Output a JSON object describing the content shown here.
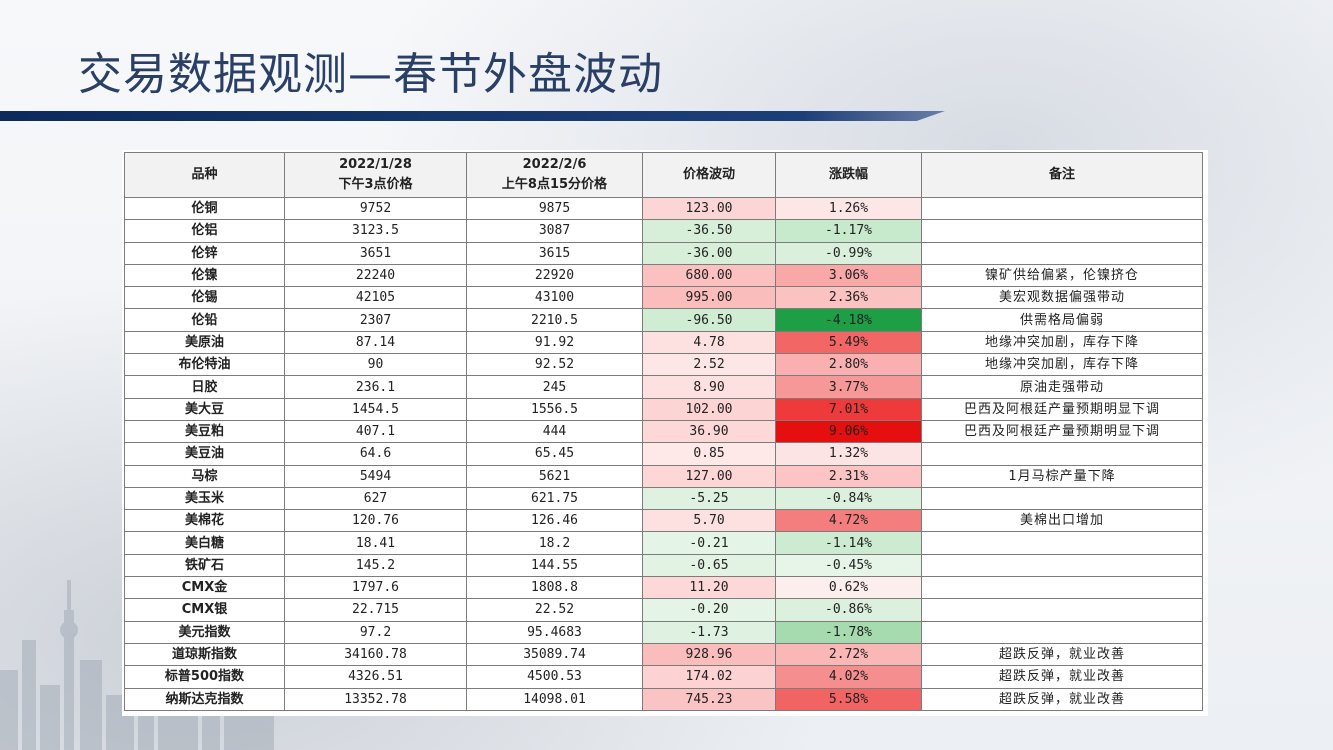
{
  "slide": {
    "title": "交易数据观测—春节外盘波动"
  },
  "table": {
    "headers": {
      "variety": "品种",
      "date1": "2022/1/28",
      "date1_sub": "下午3点价格",
      "date2": "2022/2/6",
      "date2_sub": "上午8点15分价格",
      "change": "价格波动",
      "pct": "涨跌幅",
      "note": "备注"
    },
    "rows": [
      {
        "name": "伦铜",
        "p1": "9752",
        "p2": "9875",
        "chg": "123.00",
        "pct": "1.26%",
        "note": "",
        "chg_color": "#fcd6d6",
        "pct_color": "#fde6e6"
      },
      {
        "name": "伦铝",
        "p1": "3123.5",
        "p2": "3087",
        "chg": "-36.50",
        "pct": "-1.17%",
        "note": "",
        "chg_color": "#d7efd9",
        "pct_color": "#c8eacc"
      },
      {
        "name": "伦锌",
        "p1": "3651",
        "p2": "3615",
        "chg": "-36.00",
        "pct": "-0.99%",
        "note": "",
        "chg_color": "#d7efd9",
        "pct_color": "#daf0dc"
      },
      {
        "name": "伦镍",
        "p1": "22240",
        "p2": "22920",
        "chg": "680.00",
        "pct": "3.06%",
        "note": "镍矿供给偏紧，伦镍挤仓",
        "chg_color": "#fbc0c0",
        "pct_color": "#f9a8a8"
      },
      {
        "name": "伦锡",
        "p1": "42105",
        "p2": "43100",
        "chg": "995.00",
        "pct": "2.36%",
        "note": "美宏观数据偏强带动",
        "chg_color": "#fbbcbc",
        "pct_color": "#fbc2c2"
      },
      {
        "name": "伦铅",
        "p1": "2307",
        "p2": "2210.5",
        "chg": "-96.50",
        "pct": "-4.18%",
        "note": "供需格局偏弱",
        "chg_color": "#d0ecd3",
        "pct_color": "#1e9e45"
      },
      {
        "name": "美原油",
        "p1": "87.14",
        "p2": "91.92",
        "chg": "4.78",
        "pct": "5.49%",
        "note": "地缘冲突加剧，库存下降",
        "chg_color": "#fde0e0",
        "pct_color": "#f26666"
      },
      {
        "name": "布伦特油",
        "p1": "90",
        "p2": "92.52",
        "chg": "2.52",
        "pct": "2.80%",
        "note": "地缘冲突加剧，库存下降",
        "chg_color": "#fde6e6",
        "pct_color": "#fab0b0"
      },
      {
        "name": "日胶",
        "p1": "236.1",
        "p2": "245",
        "chg": "8.90",
        "pct": "3.77%",
        "note": "原油走强带动",
        "chg_color": "#fde0e0",
        "pct_color": "#f79898"
      },
      {
        "name": "美大豆",
        "p1": "1454.5",
        "p2": "1556.5",
        "chg": "102.00",
        "pct": "7.01%",
        "note": "巴西及阿根廷产量预期明显下调",
        "chg_color": "#fdd4d4",
        "pct_color": "#ee3a3a"
      },
      {
        "name": "美豆粕",
        "p1": "407.1",
        "p2": "444",
        "chg": "36.90",
        "pct": "9.06%",
        "note": "巴西及阿根廷产量预期明显下调",
        "chg_color": "#fdd8d8",
        "pct_color": "#e60f0f"
      },
      {
        "name": "美豆油",
        "p1": "64.6",
        "p2": "65.45",
        "chg": "0.85",
        "pct": "1.32%",
        "note": "",
        "chg_color": "#fee8e8",
        "pct_color": "#fde4e4"
      },
      {
        "name": "马棕",
        "p1": "5494",
        "p2": "5621",
        "chg": "127.00",
        "pct": "2.31%",
        "note": "1月马棕产量下降",
        "chg_color": "#fdd6d6",
        "pct_color": "#fcc4c4"
      },
      {
        "name": "美玉米",
        "p1": "627",
        "p2": "621.75",
        "chg": "-5.25",
        "pct": "-0.84%",
        "note": "",
        "chg_color": "#dff2e1",
        "pct_color": "#dcf0de"
      },
      {
        "name": "美棉花",
        "p1": "120.76",
        "p2": "126.46",
        "chg": "5.70",
        "pct": "4.72%",
        "note": "美棉出口增加",
        "chg_color": "#fde0e0",
        "pct_color": "#f47e7e"
      },
      {
        "name": "美白糖",
        "p1": "18.41",
        "p2": "18.2",
        "chg": "-0.21",
        "pct": "-1.14%",
        "note": "",
        "chg_color": "#e4f4e6",
        "pct_color": "#cdebd0"
      },
      {
        "name": "铁矿石",
        "p1": "145.2",
        "p2": "144.55",
        "chg": "-0.65",
        "pct": "-0.45%",
        "note": "",
        "chg_color": "#e2f3e4",
        "pct_color": "#e6f5e8"
      },
      {
        "name": "CMX金",
        "p1": "1797.6",
        "p2": "1808.8",
        "chg": "11.20",
        "pct": "0.62%",
        "note": "",
        "chg_color": "#fdd8d8",
        "pct_color": "#fdeeee"
      },
      {
        "name": "CMX银",
        "p1": "22.715",
        "p2": "22.52",
        "chg": "-0.20",
        "pct": "-0.86%",
        "note": "",
        "chg_color": "#e4f4e6",
        "pct_color": "#dcf0de"
      },
      {
        "name": "美元指数",
        "p1": "97.2",
        "p2": "95.4683",
        "chg": "-1.73",
        "pct": "-1.78%",
        "note": "",
        "chg_color": "#dff2e1",
        "pct_color": "#a6dbb0"
      },
      {
        "name": "道琼斯指数",
        "p1": "34160.78",
        "p2": "35089.74",
        "chg": "928.96",
        "pct": "2.72%",
        "note": "超跌反弹，就业改善",
        "chg_color": "#fbbcbc",
        "pct_color": "#fbb6b6"
      },
      {
        "name": "标普500指数",
        "p1": "4326.51",
        "p2": "4500.53",
        "chg": "174.02",
        "pct": "4.02%",
        "note": "超跌反弹，就业改善",
        "chg_color": "#fdd2d2",
        "pct_color": "#f58e8e"
      },
      {
        "name": "纳斯达克指数",
        "p1": "13352.78",
        "p2": "14098.01",
        "chg": "745.23",
        "pct": "5.58%",
        "note": "超跌反弹，就业改善",
        "chg_color": "#fbc4c4",
        "pct_color": "#f26464"
      }
    ]
  }
}
